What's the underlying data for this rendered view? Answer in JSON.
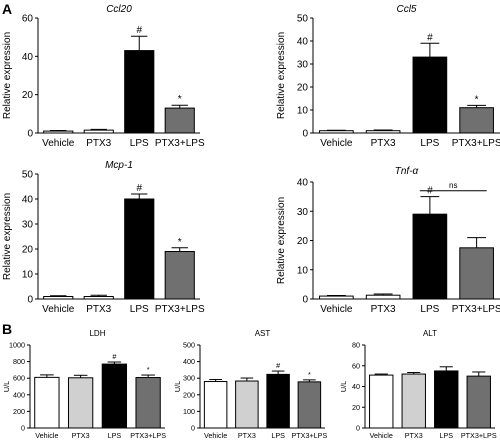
{
  "panels": [
    {
      "letter": "A"
    },
    {
      "letter": "B"
    }
  ],
  "chart_data": [
    {
      "type": "bar",
      "panel": "A",
      "title": "Ccl20",
      "title_italic": true,
      "ylabel": "Relative expression",
      "ylim": [
        0,
        60
      ],
      "yticks": [
        0,
        20,
        40,
        60
      ],
      "categories": [
        "Vehicle",
        "PTX3",
        "LPS",
        "PTX3+LPS"
      ],
      "values": [
        1,
        1.5,
        43,
        13
      ],
      "errors": [
        0.3,
        0.4,
        7.5,
        1.5
      ],
      "colors": [
        "#ffffff",
        "#ffffff",
        "#000000",
        "#707070"
      ],
      "annotations": [
        {
          "category": "LPS",
          "text": "#"
        },
        {
          "category": "PTX3+LPS",
          "text": "*"
        }
      ]
    },
    {
      "type": "bar",
      "panel": "A",
      "title": "Ccl5",
      "title_italic": true,
      "ylabel": "Relative expression",
      "ylim": [
        0,
        50
      ],
      "yticks": [
        0,
        10,
        20,
        30,
        40,
        50
      ],
      "categories": [
        "Vehicle",
        "PTX3",
        "LPS",
        "PTX3+LPS"
      ],
      "values": [
        1,
        1,
        33,
        11
      ],
      "errors": [
        0.2,
        0.3,
        6,
        1
      ],
      "colors": [
        "#ffffff",
        "#ffffff",
        "#000000",
        "#707070"
      ],
      "annotations": [
        {
          "category": "LPS",
          "text": "#"
        },
        {
          "category": "PTX3+LPS",
          "text": "*"
        }
      ]
    },
    {
      "type": "bar",
      "panel": "A",
      "title": "Mcp-1",
      "title_italic": true,
      "ylabel": "Relative expression",
      "ylim": [
        0,
        50
      ],
      "yticks": [
        0,
        10,
        20,
        30,
        40,
        50
      ],
      "categories": [
        "Vehicle",
        "PTX3",
        "LPS",
        "PTX3+LPS"
      ],
      "values": [
        1,
        1,
        40,
        19
      ],
      "errors": [
        0.3,
        0.5,
        2,
        1.5
      ],
      "colors": [
        "#ffffff",
        "#ffffff",
        "#000000",
        "#707070"
      ],
      "annotations": [
        {
          "category": "LPS",
          "text": "#"
        },
        {
          "category": "PTX3+LPS",
          "text": "*"
        }
      ]
    },
    {
      "type": "bar",
      "panel": "A",
      "title": "Tnf-α",
      "title_italic": true,
      "ylabel": "Relative expression",
      "ylim": [
        0,
        40
      ],
      "yticks": [
        0,
        10,
        20,
        30,
        40
      ],
      "categories": [
        "Vehicle",
        "PTX3",
        "LPS",
        "PTX3+LPS"
      ],
      "values": [
        1,
        1.3,
        29,
        17.5
      ],
      "errors": [
        0.2,
        0.4,
        6,
        3.5
      ],
      "colors": [
        "#ffffff",
        "#ffffff",
        "#000000",
        "#707070"
      ],
      "annotations": [
        {
          "category": "LPS",
          "text": "#"
        }
      ],
      "bracket": {
        "from": "LPS",
        "to": "PTX3+LPS",
        "value": 37,
        "text": "ns"
      }
    },
    {
      "type": "bar",
      "panel": "B",
      "title": "LDH",
      "title_italic": false,
      "ylabel": "U/L",
      "ylim": [
        0,
        1000
      ],
      "yticks": [
        0,
        200,
        400,
        600,
        800,
        1000
      ],
      "categories": [
        "Vehicle",
        "PTX3",
        "LPS",
        "PTX3+LPS"
      ],
      "values": [
        610,
        605,
        770,
        608
      ],
      "errors": [
        30,
        30,
        25,
        30
      ],
      "colors": [
        "#ffffff",
        "#d0d0d0",
        "#000000",
        "#707070"
      ],
      "annotations": [
        {
          "category": "LPS",
          "text": "#"
        },
        {
          "category": "PTX3+LPS",
          "text": "*"
        }
      ]
    },
    {
      "type": "bar",
      "panel": "B",
      "title": "AST",
      "title_italic": false,
      "ylabel": "U/L",
      "ylim": [
        0,
        500
      ],
      "yticks": [
        0,
        100,
        200,
        300,
        400,
        500
      ],
      "categories": [
        "Vehicle",
        "PTX3",
        "LPS",
        "PTX3+LPS"
      ],
      "values": [
        280,
        283,
        323,
        278
      ],
      "errors": [
        12,
        18,
        20,
        12
      ],
      "colors": [
        "#ffffff",
        "#d0d0d0",
        "#000000",
        "#707070"
      ],
      "annotations": [
        {
          "category": "LPS",
          "text": "#"
        },
        {
          "category": "PTX3+LPS",
          "text": "*"
        }
      ]
    },
    {
      "type": "bar",
      "panel": "B",
      "title": "ALT",
      "title_italic": false,
      "ylabel": "U/L",
      "ylim": [
        0,
        80
      ],
      "yticks": [
        0,
        20,
        40,
        60,
        80
      ],
      "categories": [
        "Vehicle",
        "PTX3",
        "LPS",
        "PTX3+LPS"
      ],
      "values": [
        51,
        52,
        55,
        50
      ],
      "errors": [
        1,
        1.5,
        4,
        4
      ],
      "colors": [
        "#ffffff",
        "#d0d0d0",
        "#000000",
        "#707070"
      ],
      "annotations": []
    }
  ]
}
